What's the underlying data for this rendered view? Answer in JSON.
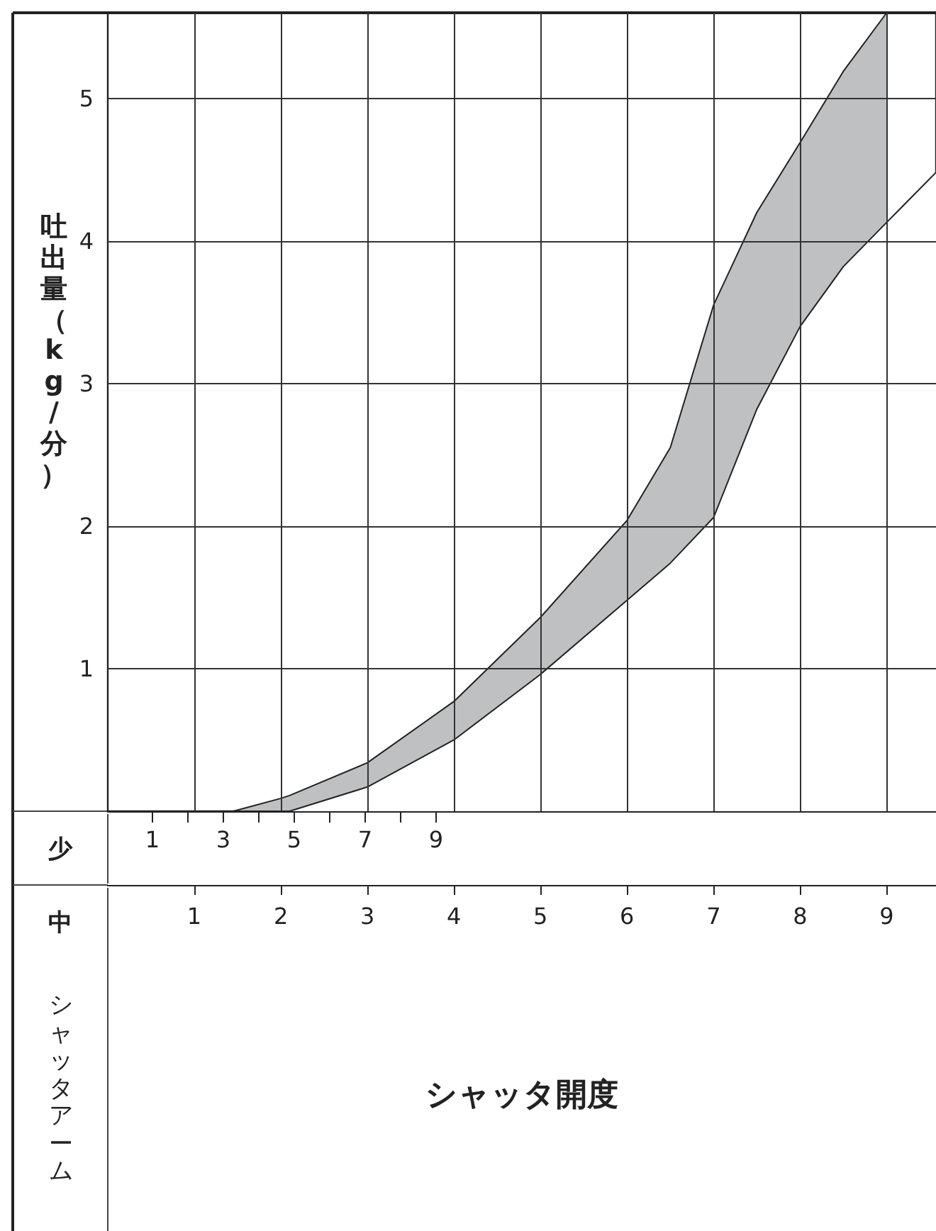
{
  "chart_data": {
    "type": "area",
    "stacked": true,
    "ylabel": "吐出量（kg/分）",
    "x2label": "少",
    "annotations": [
      "中",
      "シャッタアーム",
      "シャッタ開度"
    ],
    "xlim": [
      0,
      9.57
    ],
    "xticks": [
      1,
      2,
      3,
      4,
      5,
      6,
      7,
      8,
      9
    ],
    "x2lim": [
      -0.26,
      23.1
    ],
    "x2ticks": [
      1,
      {
        "value": 2,
        "label": null
      },
      3,
      {
        "value": 4,
        "label": null
      },
      5,
      {
        "value": 6,
        "label": null
      },
      7,
      {
        "value": 8,
        "label": null
      },
      9
    ],
    "ylim": [
      0,
      5.6
    ],
    "yticks": [
      1,
      2,
      3,
      4,
      5
    ],
    "grid": true,
    "x": [
      1.45,
      2,
      2.1,
      3,
      4,
      5,
      6,
      6.5,
      7,
      7.5,
      8,
      8.5,
      9,
      9.57
    ],
    "series": [
      {
        "color": "#ffffff",
        "values": [
          0,
          0,
          0,
          0.17,
          0.5,
          0.96,
          1.48,
          1.74,
          2.06,
          2.82,
          3.4,
          3.82,
          4.13,
          4.48
        ]
      },
      {
        "color": "#bfc0c2",
        "values": [
          0,
          0.09,
          0.11,
          0.17,
          0.27,
          0.4,
          0.56,
          0.81,
          1.49,
          1.38,
          1.29,
          1.37,
          1.47,
          null
        ]
      }
    ]
  }
}
